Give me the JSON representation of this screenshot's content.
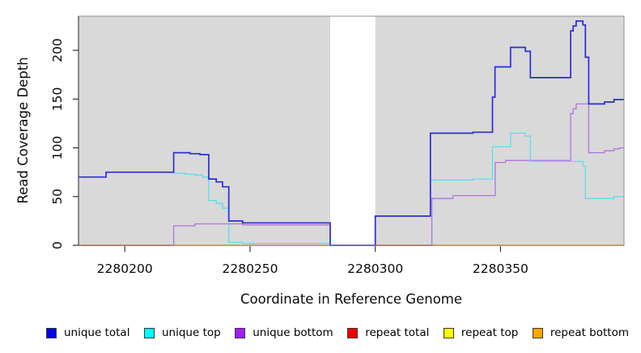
{
  "chart_data": {
    "type": "line",
    "subtype": "step-coverage",
    "title": "",
    "xlabel": "Coordinate in Reference Genome",
    "ylabel": "Read Coverage Depth",
    "xlim": [
      2280181.5,
      2280399.3
    ],
    "ylim": [
      0,
      235
    ],
    "xticks": [
      2280200,
      2280250,
      2280300,
      2280350
    ],
    "yticks": [
      0,
      50,
      100,
      150,
      200
    ],
    "grid": "off",
    "plot_bg": "#d9d9d9",
    "gap_region": {
      "x_start": 2280282,
      "x_end": 2280300
    },
    "legend_position": "bottom",
    "legend": [
      {
        "label": "unique total",
        "color": "#0000EE"
      },
      {
        "label": "unique top",
        "color": "#00FFFF"
      },
      {
        "label": "unique bottom",
        "color": "#A020F0"
      },
      {
        "label": "repeat total",
        "color": "#EE0000"
      },
      {
        "label": "repeat top",
        "color": "#FFFF00"
      },
      {
        "label": "repeat bottom",
        "color": "#FFA500"
      }
    ],
    "series": [
      {
        "name": "unique total",
        "line_color": "#2b2dd6",
        "width": 1.7,
        "steps": [
          [
            2280181.5,
            70
          ],
          [
            2280192.5,
            75
          ],
          [
            2280219.5,
            95
          ],
          [
            2280226,
            94
          ],
          [
            2280230,
            93
          ],
          [
            2280233.5,
            68
          ],
          [
            2280236.5,
            65
          ],
          [
            2280239,
            60
          ],
          [
            2280241.5,
            25
          ],
          [
            2280247,
            23
          ],
          [
            2280282,
            0
          ],
          [
            2280300,
            30
          ],
          [
            2280322,
            115
          ],
          [
            2280339,
            116
          ],
          [
            2280346.8,
            152
          ],
          [
            2280347.8,
            183
          ],
          [
            2280354,
            203
          ],
          [
            2280359.9,
            199
          ],
          [
            2280361.9,
            172
          ],
          [
            2280378,
            220
          ],
          [
            2280379,
            225
          ],
          [
            2280380.2,
            230
          ],
          [
            2280382.9,
            226
          ],
          [
            2280383.9,
            193
          ],
          [
            2280385.2,
            145
          ],
          [
            2280391.5,
            147
          ],
          [
            2280395.3,
            149.5
          ]
        ]
      },
      {
        "name": "unique top",
        "line_color": "#5bdcf0",
        "width": 1.3,
        "steps": [
          [
            2280181.5,
            70
          ],
          [
            2280192.5,
            75
          ],
          [
            2280219.5,
            74
          ],
          [
            2280224,
            73
          ],
          [
            2280228,
            72
          ],
          [
            2280231,
            70
          ],
          [
            2280233.5,
            46
          ],
          [
            2280236.5,
            43
          ],
          [
            2280239,
            38
          ],
          [
            2280241.5,
            3
          ],
          [
            2280247,
            2
          ],
          [
            2280282,
            0
          ],
          [
            2280300,
            30
          ],
          [
            2280322,
            67
          ],
          [
            2280339,
            68
          ],
          [
            2280346.8,
            101
          ],
          [
            2280354,
            115
          ],
          [
            2280359.9,
            112
          ],
          [
            2280361.9,
            86
          ],
          [
            2280382.9,
            81.5
          ],
          [
            2280383.9,
            48
          ],
          [
            2280395.3,
            50
          ]
        ]
      },
      {
        "name": "unique bottom",
        "line_color": "#b272de",
        "width": 1.3,
        "steps": [
          [
            2280181.5,
            0
          ],
          [
            2280219.5,
            20
          ],
          [
            2280228,
            22
          ],
          [
            2280247,
            21
          ],
          [
            2280282,
            0
          ],
          [
            2280322.6,
            48
          ],
          [
            2280331,
            51
          ],
          [
            2280347.9,
            85
          ],
          [
            2280352,
            87
          ],
          [
            2280378,
            135
          ],
          [
            2280379,
            140
          ],
          [
            2280380.2,
            145
          ],
          [
            2280385.2,
            95
          ],
          [
            2280391.5,
            97
          ],
          [
            2280395.3,
            99
          ],
          [
            2280397.5,
            100
          ]
        ]
      },
      {
        "name": "repeat total",
        "line_color": "#ca4f6e",
        "width": 1.4,
        "steps": [
          [
            2280181.5,
            0
          ]
        ],
        "visible_segments": [
          [
            2280181.5,
            2280219.5
          ],
          [
            2280300,
            2280323
          ]
        ]
      },
      {
        "name": "repeat top",
        "line_color": "#e8e84a",
        "width": 1.0,
        "steps": [
          [
            2280181.5,
            0
          ]
        ]
      },
      {
        "name": "repeat bottom",
        "line_color": "#ff9d1f",
        "width": 1.8,
        "steps": [
          [
            2280181.5,
            0
          ]
        ]
      }
    ]
  }
}
